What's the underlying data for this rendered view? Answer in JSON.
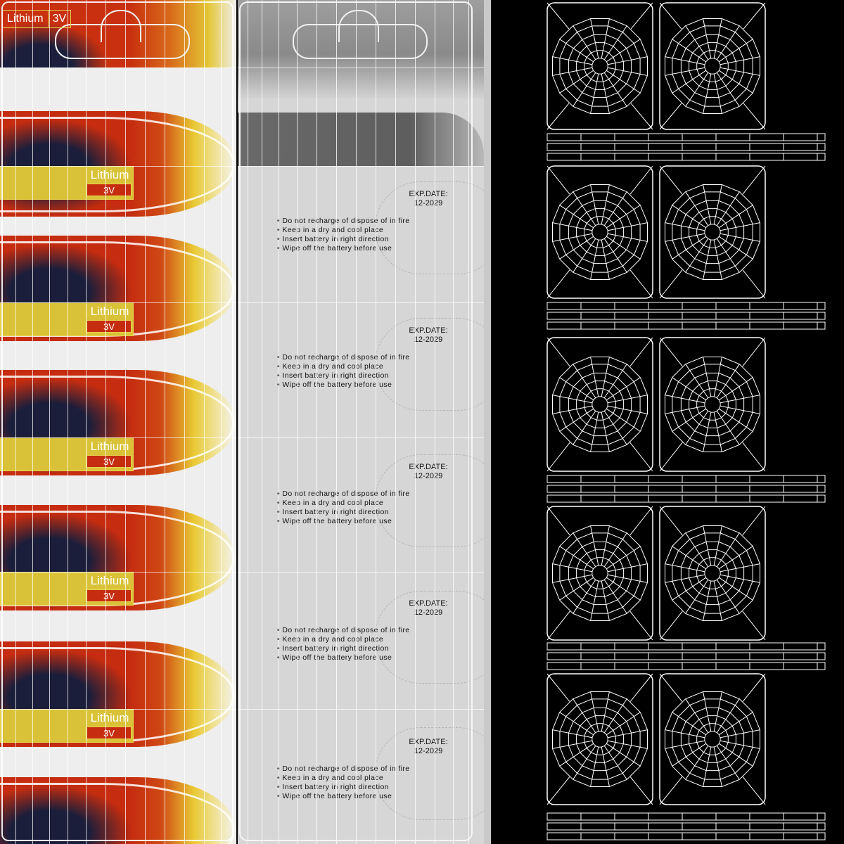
{
  "top_label": {
    "name": "Lithium",
    "voltage": "3V"
  },
  "band_label": {
    "name": "Lithium",
    "voltage": "3V"
  },
  "expiry": {
    "title": "EXP.DATE:",
    "date": "12-2029"
  },
  "warnings": [
    "Do not recharge of dispose of in fire",
    "Keep in a dry and cool place",
    "Insert battery in right direction",
    "Wipe off the battery before use"
  ],
  "colors": {
    "red": "#c52c10",
    "navy": "#1b1e3a",
    "yellow": "#d9c237",
    "gray": "#d6d6d6",
    "wire": "#ffffff"
  }
}
